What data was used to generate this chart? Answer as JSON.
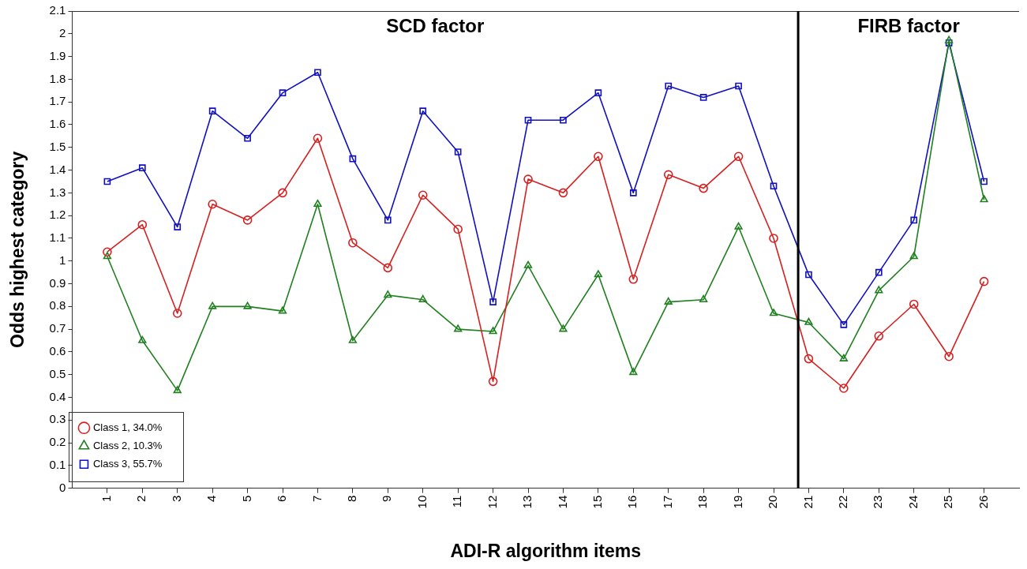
{
  "chart_data": {
    "type": "line",
    "xlabel": "ADI-R algorithm items",
    "ylabel": "Odds highest category",
    "x": [
      1,
      2,
      3,
      4,
      5,
      6,
      7,
      8,
      9,
      10,
      11,
      12,
      13,
      14,
      15,
      16,
      17,
      18,
      19,
      20,
      21,
      22,
      23,
      24,
      25,
      26
    ],
    "xlim": [
      0,
      27
    ],
    "xticks": [
      1,
      2,
      3,
      4,
      5,
      6,
      7,
      8,
      9,
      10,
      11,
      12,
      13,
      14,
      15,
      16,
      17,
      18,
      19,
      20,
      21,
      22,
      23,
      24,
      25,
      26
    ],
    "ylim": [
      0,
      2.1
    ],
    "yticks": [
      0,
      0.1,
      0.2,
      0.3,
      0.4,
      0.5,
      0.6,
      0.7,
      0.8,
      0.9,
      1,
      1.1,
      1.2,
      1.3,
      1.4,
      1.5,
      1.6,
      1.7,
      1.8,
      1.9,
      2,
      2.1
    ],
    "series": [
      {
        "name": "Class 1, 34.0%",
        "color": "#d62020",
        "marker": "circle",
        "values": [
          1.04,
          1.16,
          0.77,
          1.25,
          1.18,
          1.3,
          1.54,
          1.08,
          0.97,
          1.29,
          1.14,
          0.47,
          1.36,
          1.3,
          1.46,
          0.92,
          1.38,
          1.32,
          1.46,
          1.1,
          0.57,
          0.44,
          0.67,
          0.81,
          0.58,
          0.91
        ]
      },
      {
        "name": "Class 2, 10.3%",
        "color": "#208020",
        "marker": "triangle",
        "values": [
          1.02,
          0.65,
          0.43,
          0.8,
          0.8,
          0.78,
          1.25,
          0.65,
          0.85,
          0.83,
          0.7,
          0.69,
          0.98,
          0.7,
          0.94,
          0.51,
          0.82,
          0.83,
          1.15,
          0.77,
          0.73,
          0.57,
          0.87,
          1.02,
          1.97,
          1.27
        ]
      },
      {
        "name": "Class 3, 55.7%",
        "color": "#1010c0",
        "marker": "square",
        "values": [
          1.35,
          1.41,
          1.15,
          1.66,
          1.54,
          1.74,
          1.83,
          1.45,
          1.18,
          1.66,
          1.48,
          0.82,
          1.62,
          1.62,
          1.74,
          1.3,
          1.77,
          1.72,
          1.77,
          1.33,
          0.94,
          0.72,
          0.95,
          1.18,
          1.96,
          1.35
        ]
      }
    ],
    "ref_lines": [
      {
        "axis": "x",
        "value": 20.7,
        "color": "#000000"
      }
    ],
    "annotations": [
      "SCD factor",
      "FIRB factor"
    ],
    "legend": "bottom left",
    "grid": false,
    "line_style": "solid"
  }
}
